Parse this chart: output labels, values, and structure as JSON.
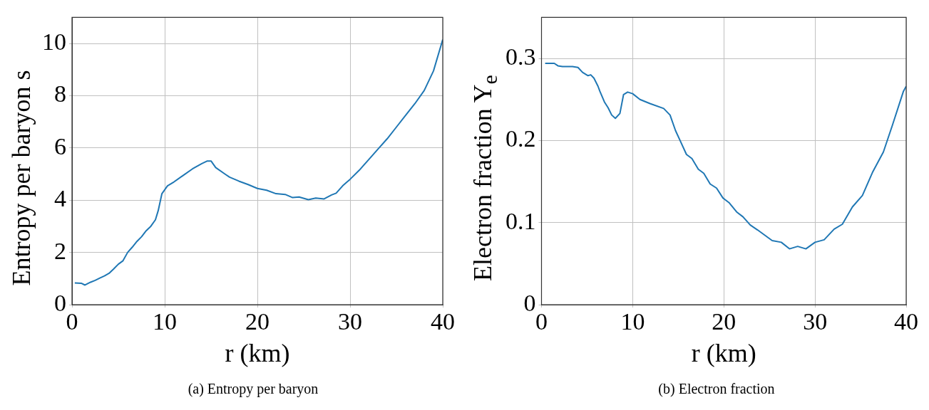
{
  "chart_data": [
    {
      "type": "line",
      "xlabel": "r (km)",
      "ylabel": "Entropy per baryon s",
      "annotations": [
        "(a) Entropy per baryon"
      ],
      "xlim": [
        0,
        40
      ],
      "xticks": [
        0,
        10,
        20,
        30,
        40
      ],
      "ylim": [
        0,
        11
      ],
      "yticks": [
        0,
        2,
        4,
        6,
        8,
        10
      ],
      "grid": true,
      "series": [
        {
          "color": "#1f77b4",
          "x": [
            0.3,
            1,
            1.4,
            2,
            2.5,
            3,
            3.5,
            4,
            4.5,
            5,
            5.5,
            6,
            6.5,
            7,
            7.5,
            8,
            8.5,
            9,
            9.3,
            9.7,
            10.3,
            11,
            12,
            13,
            14,
            14.6,
            15,
            15.5,
            16.5,
            17,
            18,
            19,
            20,
            21,
            22,
            23,
            23.8,
            24.5,
            25.5,
            26.3,
            27.2,
            28,
            28.5,
            29.2,
            30,
            31,
            32,
            33,
            34,
            35,
            36,
            37,
            38,
            39,
            40
          ],
          "values": [
            0.83,
            0.82,
            0.75,
            0.86,
            0.93,
            1.02,
            1.1,
            1.2,
            1.37,
            1.55,
            1.68,
            2.0,
            2.2,
            2.42,
            2.6,
            2.83,
            3.0,
            3.25,
            3.6,
            4.25,
            4.55,
            4.7,
            4.95,
            5.2,
            5.4,
            5.5,
            5.5,
            5.25,
            5.0,
            4.88,
            4.73,
            4.6,
            4.45,
            4.38,
            4.25,
            4.22,
            4.1,
            4.12,
            4.02,
            4.08,
            4.05,
            4.2,
            4.27,
            4.55,
            4.8,
            5.15,
            5.55,
            5.95,
            6.35,
            6.8,
            7.25,
            7.7,
            8.2,
            8.95,
            10.15
          ]
        }
      ]
    },
    {
      "type": "line",
      "xlabel": "r (km)",
      "ylabel": "Electron fraction Y$_{e}$",
      "annotations": [
        "(b) Electron fraction"
      ],
      "xlim": [
        0,
        40
      ],
      "xticks": [
        0,
        10,
        20,
        30,
        40
      ],
      "ylim": [
        0,
        0.35
      ],
      "yticks": [
        0,
        0.1,
        0.2,
        0.3
      ],
      "grid": true,
      "series": [
        {
          "color": "#1f77b4",
          "x": [
            0.4,
            1.4,
            1.8,
            2.3,
            3.4,
            4.0,
            4.5,
            5.1,
            5.4,
            5.75,
            6.2,
            6.4,
            6.9,
            7.3,
            7.7,
            8.1,
            8.6,
            9.0,
            9.45,
            10.0,
            10.8,
            11.9,
            13.4,
            14.1,
            14.7,
            15.2,
            15.9,
            16.5,
            17.2,
            17.8,
            18.5,
            19.2,
            19.9,
            20.6,
            21.4,
            22.1,
            22.9,
            23.7,
            25.3,
            26.3,
            27.2,
            28.1,
            29.0,
            30.0,
            31.0,
            32.1,
            33.0,
            34.1,
            35.2,
            36.3,
            37.5,
            38.5,
            39.7,
            40
          ],
          "values": [
            0.294,
            0.294,
            0.291,
            0.29,
            0.29,
            0.289,
            0.283,
            0.279,
            0.28,
            0.276,
            0.266,
            0.26,
            0.247,
            0.24,
            0.231,
            0.227,
            0.233,
            0.256,
            0.259,
            0.257,
            0.25,
            0.245,
            0.239,
            0.231,
            0.212,
            0.2,
            0.183,
            0.178,
            0.165,
            0.16,
            0.147,
            0.142,
            0.13,
            0.124,
            0.113,
            0.107,
            0.097,
            0.091,
            0.078,
            0.076,
            0.068,
            0.071,
            0.068,
            0.076,
            0.079,
            0.092,
            0.098,
            0.119,
            0.133,
            0.161,
            0.186,
            0.219,
            0.26,
            0.266
          ]
        }
      ]
    }
  ]
}
